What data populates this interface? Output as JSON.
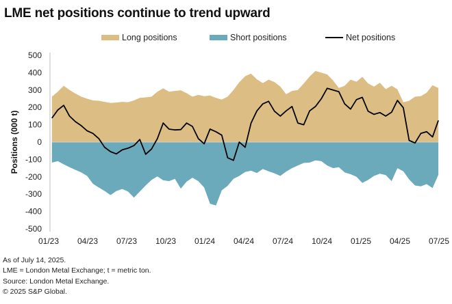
{
  "chart_data": {
    "type": "area",
    "title": "LME net positions continue to trend upward",
    "xlabel": "",
    "ylabel": "Positions (000 t)",
    "ylim": [
      -500,
      500
    ],
    "yticks": [
      500,
      400,
      300,
      200,
      100,
      0,
      -100,
      -200,
      -300,
      -400,
      -500
    ],
    "xtick_labels": [
      "01/23",
      "04/23",
      "07/23",
      "10/23",
      "01/24",
      "04/24",
      "07/24",
      "10/24",
      "01/25",
      "04/25",
      "07/25"
    ],
    "x_unit": "months since 01/23",
    "xlim": [
      0,
      30
    ],
    "grid": false,
    "legend_position": "top-center",
    "colors": {
      "long": "#dcbd84",
      "short": "#6aaabb",
      "net": "#000000"
    },
    "x": [
      0.15,
      0.6,
      1.05,
      1.5,
      1.95,
      2.4,
      2.85,
      3.3,
      3.75,
      4.2,
      4.65,
      5.1,
      5.55,
      6.0,
      6.45,
      6.9,
      7.35,
      7.8,
      8.25,
      8.7,
      9.15,
      9.6,
      10.05,
      10.5,
      10.95,
      11.4,
      11.85,
      12.3,
      12.75,
      13.2,
      13.65,
      14.1,
      14.55,
      15.0,
      15.45,
      15.9,
      16.35,
      16.8,
      17.25,
      17.7,
      18.15,
      18.6,
      19.05,
      19.5,
      19.95,
      20.4,
      20.85,
      21.3,
      21.75,
      22.2,
      22.65,
      23.1,
      23.55,
      24.0,
      24.45,
      24.9,
      25.35,
      25.8,
      26.25,
      26.7,
      27.15,
      27.6,
      28.05,
      28.5,
      28.95,
      29.4,
      29.85
    ],
    "series": [
      {
        "name": "Long positions",
        "values": [
          262,
          290,
          325,
          300,
          280,
          262,
          250,
          240,
          238,
          232,
          226,
          228,
          232,
          230,
          240,
          255,
          258,
          262,
          290,
          310,
          290,
          295,
          298,
          282,
          262,
          272,
          265,
          268,
          255,
          245,
          262,
          300,
          345,
          380,
          395,
          362,
          340,
          360,
          346,
          320,
          276,
          295,
          300,
          338,
          378,
          410,
          400,
          390,
          355,
          312,
          325,
          360,
          348,
          376,
          338,
          320,
          342,
          305,
          325,
          304,
          230,
          238,
          262,
          265,
          285,
          328,
          312
        ]
      },
      {
        "name": "Short positions",
        "values": [
          -118,
          -110,
          -128,
          -145,
          -160,
          -175,
          -195,
          -240,
          -262,
          -282,
          -305,
          -282,
          -270,
          -285,
          -320,
          -285,
          -250,
          -218,
          -198,
          -220,
          -225,
          -212,
          -268,
          -228,
          -205,
          -225,
          -262,
          -355,
          -365,
          -278,
          -252,
          -212,
          -195,
          -172,
          -165,
          -178,
          -155,
          -168,
          -180,
          -195,
          -170,
          -150,
          -135,
          -120,
          -118,
          -105,
          -110,
          -135,
          -150,
          -145,
          -175,
          -185,
          -200,
          -235,
          -218,
          -195,
          -182,
          -190,
          -225,
          -150,
          -168,
          -215,
          -250,
          -255,
          -242,
          -265,
          -188
        ]
      },
      {
        "name": "Net positions",
        "values": [
          138,
          185,
          212,
          150,
          118,
          95,
          65,
          50,
          20,
          -30,
          -55,
          -68,
          -45,
          -35,
          -20,
          15,
          -70,
          -40,
          20,
          110,
          75,
          70,
          72,
          110,
          90,
          20,
          -10,
          75,
          60,
          40,
          -90,
          -105,
          0,
          -30,
          110,
          180,
          220,
          235,
          178,
          150,
          180,
          205,
          110,
          100,
          180,
          205,
          250,
          310,
          300,
          290,
          220,
          190,
          245,
          258,
          178,
          160,
          170,
          150,
          172,
          240,
          198,
          10,
          -5,
          50,
          60,
          30,
          125
        ]
      }
    ]
  },
  "legend": {
    "items": [
      {
        "label": "Long positions",
        "swatch": "#dcbd84"
      },
      {
        "label": "Short positions",
        "swatch": "#6aaabb"
      },
      {
        "label": "Net positions"
      }
    ]
  },
  "footnotes": [
    "As of July 14, 2025.",
    "LME = London Metal Exchange; t = metric ton.",
    "Source: London Metal Exchange.",
    "© 2025 S&P Global."
  ]
}
